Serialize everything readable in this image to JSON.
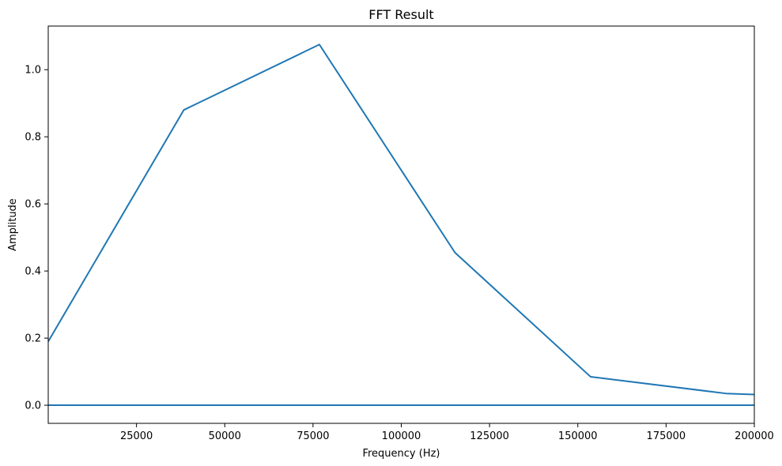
{
  "chart_data": {
    "type": "line",
    "title": "FFT Result",
    "xlabel": "Frequency (Hz)",
    "ylabel": "Amplitude",
    "xlim": [
      0,
      200000
    ],
    "ylim": [
      -0.054,
      1.13
    ],
    "grid": false,
    "xticks": [
      25000,
      50000,
      75000,
      100000,
      125000,
      150000,
      175000,
      200000
    ],
    "xtick_labels": [
      "25000",
      "50000",
      "75000",
      "100000",
      "125000",
      "150000",
      "175000",
      "200000"
    ],
    "yticks": [
      0.0,
      0.2,
      0.4,
      0.6,
      0.8,
      1.0
    ],
    "ytick_labels": [
      "0.0",
      "0.2",
      "0.4",
      "0.6",
      "0.8",
      "1.0"
    ],
    "series": [
      {
        "color": "#1f77b4",
        "x": [
          0,
          38400,
          76800,
          115200,
          153600,
          192000,
          200000
        ],
        "y": [
          0.19,
          0.88,
          1.075,
          0.455,
          0.085,
          0.035,
          0.032
        ]
      },
      {
        "color": "#1f77b4",
        "x": [
          0,
          200000
        ],
        "y": [
          0.0,
          0.0
        ]
      }
    ]
  }
}
